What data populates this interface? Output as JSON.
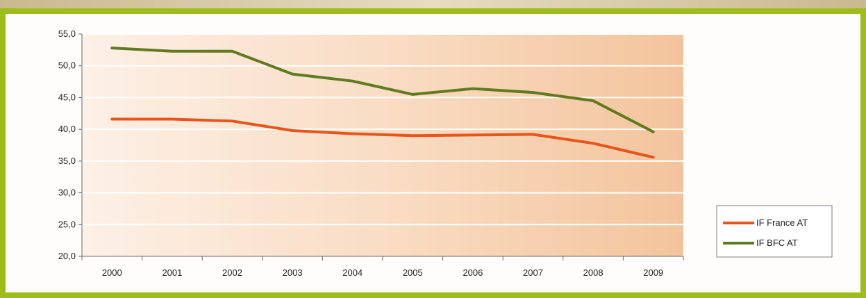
{
  "chart_data": {
    "type": "line",
    "title": "",
    "xlabel": "",
    "ylabel": "",
    "categories": [
      "2000",
      "2001",
      "2002",
      "2003",
      "2004",
      "2005",
      "2006",
      "2007",
      "2008",
      "2009"
    ],
    "ylim": [
      20,
      55
    ],
    "yticks": [
      "20,0",
      "25,0",
      "30,0",
      "35,0",
      "40,0",
      "45,0",
      "50,0",
      "55,0"
    ],
    "grid": true,
    "legend_position": "right",
    "series": [
      {
        "name": "IF France AT",
        "color": "#e8551c",
        "values": [
          41.6,
          41.6,
          41.3,
          39.8,
          39.3,
          39.0,
          39.1,
          39.2,
          37.8,
          35.6
        ]
      },
      {
        "name": "IF BFC AT",
        "color": "#5f7a1f",
        "values": [
          52.8,
          52.3,
          52.3,
          48.7,
          47.6,
          45.5,
          46.4,
          45.8,
          44.5,
          39.6
        ]
      }
    ]
  }
}
